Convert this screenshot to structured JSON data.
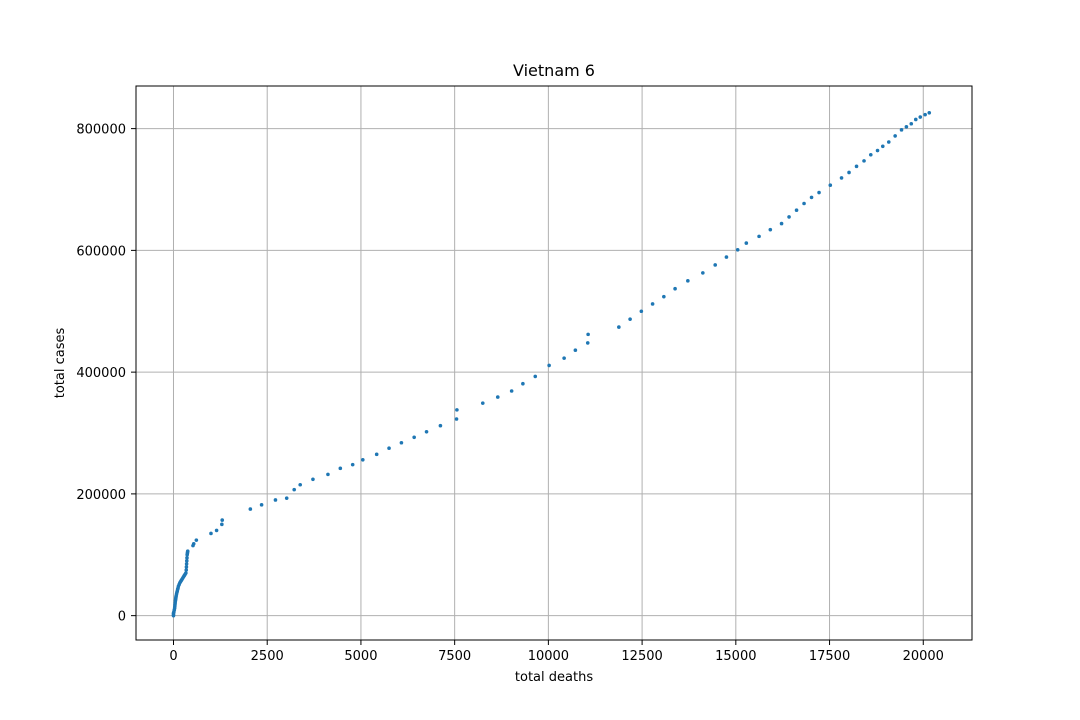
{
  "chart_data": {
    "type": "scatter",
    "title": "Vietnam 6",
    "xlabel": "total deaths",
    "ylabel": "total cases",
    "xlim": [
      -1000,
      21300
    ],
    "ylim": [
      -40000,
      870000
    ],
    "xticks": [
      0,
      2500,
      5000,
      7500,
      10000,
      12500,
      15000,
      17500,
      20000
    ],
    "yticks": [
      0,
      200000,
      400000,
      600000,
      800000
    ],
    "grid": true,
    "marker_color": "#1f77b4",
    "series": [
      {
        "x": [
          0,
          0,
          0,
          10,
          20,
          30,
          35,
          40,
          45,
          50,
          55,
          60,
          65,
          70,
          80,
          90,
          100,
          110,
          120,
          130,
          150,
          170,
          190,
          210,
          230,
          250,
          270,
          290,
          310,
          330,
          340,
          345,
          350,
          355,
          360,
          365,
          370,
          375,
          380,
          520,
          540,
          610,
          1000,
          1150,
          1290,
          1300,
          2050,
          2350,
          2720,
          3020,
          3220,
          3380,
          3720,
          4120,
          4450,
          4780,
          5050,
          5420,
          5750,
          6080,
          6420,
          6750,
          7120,
          7550,
          7560,
          8250,
          8650,
          9020,
          9320,
          9650,
          10020,
          10420,
          10720,
          11050,
          11060,
          11880,
          12180,
          12480,
          12780,
          13080,
          13380,
          13720,
          14120,
          14450,
          14750,
          15050,
          15280,
          15620,
          15920,
          16220,
          16420,
          16620,
          16820,
          17020,
          17220,
          17520,
          17820,
          18020,
          18220,
          18420,
          18600,
          18780,
          18920,
          19080,
          19250,
          19420,
          19550,
          19680,
          19800,
          19920,
          20050,
          20160
        ],
        "y": [
          0,
          2000,
          4000,
          6000,
          9000,
          12000,
          15000,
          18000,
          21000,
          24000,
          26000,
          28000,
          30000,
          32000,
          35000,
          38000,
          40000,
          43000,
          45000,
          48000,
          51000,
          54000,
          56000,
          58000,
          60000,
          62000,
          64000,
          66000,
          68000,
          70000,
          75000,
          80000,
          85000,
          90000,
          95000,
          100000,
          102000,
          104000,
          106000,
          115000,
          118000,
          124000,
          135000,
          140000,
          150000,
          157000,
          175000,
          182000,
          190000,
          193000,
          207000,
          215000,
          224000,
          232000,
          242000,
          248000,
          256000,
          265000,
          275000,
          284000,
          293000,
          302000,
          312000,
          323000,
          338000,
          349000,
          359000,
          369000,
          381000,
          393000,
          411000,
          423000,
          436000,
          448000,
          462000,
          474000,
          487000,
          500000,
          512000,
          524000,
          537000,
          550000,
          563000,
          576000,
          589000,
          601000,
          612000,
          623000,
          634000,
          644000,
          655000,
          666000,
          677000,
          687000,
          695000,
          707000,
          719000,
          728000,
          738000,
          747000,
          757000,
          764000,
          771000,
          778000,
          788000,
          798000,
          803000,
          808000,
          815000,
          819000,
          823000,
          826000
        ]
      }
    ]
  }
}
